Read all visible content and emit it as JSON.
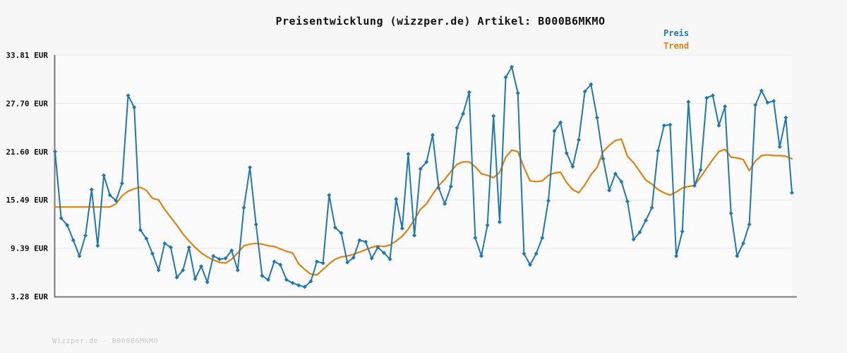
{
  "title": "Preisentwicklung (wizzper.de) Artikel: B000B6MKMO",
  "footer": "Wizzper.de - B000B6MKMO",
  "legend": [
    {
      "label": "Preis",
      "color": "#1f77b4"
    },
    {
      "label": "Trend",
      "color": "#e0820f"
    }
  ],
  "colors": {
    "page_bg": "#f7f7f7",
    "plot_bg": "#fbfbfb",
    "grid": "#e7e7e7",
    "axis": "#7a7a7a",
    "tick_text": "#111111",
    "title_text": "#111111",
    "footer_text": "#c8c8c8",
    "price": "#1f77b4",
    "trend": "#e0820f"
  },
  "chart_data": {
    "type": "line",
    "title": "Preisentwicklung (wizzper.de) Artikel: B000B6MKMO",
    "xlabel": "",
    "ylabel": "EUR",
    "ylim": [
      3.28,
      33.81
    ],
    "grid": "horizontal",
    "legend_position": "top-right",
    "x_tick_labels": [],
    "y_ticks": [
      {
        "label": "33.81 EUR",
        "value": 33.81
      },
      {
        "label": "27.70 EUR",
        "value": 27.7
      },
      {
        "label": "21.60 EUR",
        "value": 21.6
      },
      {
        "label": "15.49 EUR",
        "value": 15.49
      },
      {
        "label": "9.39 EUR",
        "value": 9.39
      },
      {
        "label": "3.28 EUR",
        "value": 3.28
      }
    ],
    "series": [
      {
        "name": "Preis",
        "color": "#1f77b4",
        "marker": "diamond",
        "line_width": 2,
        "values": [
          21.6,
          13.2,
          12.3,
          10.4,
          8.4,
          11.0,
          16.8,
          9.7,
          18.6,
          16.1,
          15.4,
          17.6,
          28.7,
          27.2,
          11.7,
          10.6,
          8.7,
          6.6,
          10.0,
          9.5,
          5.7,
          6.6,
          9.5,
          5.5,
          7.1,
          5.1,
          8.4,
          8.0,
          8.1,
          9.1,
          6.6,
          14.5,
          19.6,
          12.4,
          5.9,
          5.4,
          7.7,
          7.3,
          5.4,
          5.0,
          4.7,
          4.5,
          5.2,
          7.7,
          7.5,
          16.1,
          12.0,
          11.3,
          7.6,
          8.2,
          10.4,
          10.2,
          8.1,
          9.5,
          8.8,
          8.0,
          15.6,
          11.9,
          21.3,
          11.0,
          19.4,
          20.3,
          23.7,
          17.0,
          15.0,
          17.2,
          24.6,
          26.4,
          29.1,
          10.7,
          8.4,
          12.3,
          26.1,
          12.7,
          31.0,
          32.3,
          29.0,
          8.7,
          7.3,
          8.7,
          10.7,
          15.4,
          24.2,
          25.3,
          21.4,
          19.7,
          23.1,
          29.2,
          30.1,
          25.9,
          20.7,
          16.7,
          18.8,
          17.8,
          15.3,
          10.5,
          11.4,
          12.9,
          14.5,
          21.7,
          24.9,
          25.0,
          8.4,
          11.5,
          27.9,
          17.3,
          19.3,
          28.4,
          28.7,
          24.9,
          27.3,
          13.8,
          8.4,
          10.0,
          12.4,
          27.5,
          29.3,
          27.8,
          28.0,
          22.2,
          25.9,
          16.4
        ]
      },
      {
        "name": "Trend",
        "color": "#e0820f",
        "marker": "none",
        "line_width": 2.2,
        "values": [
          14.6,
          14.6,
          14.6,
          14.6,
          14.6,
          14.6,
          14.6,
          14.6,
          14.6,
          14.6,
          15.0,
          16.0,
          16.6,
          16.9,
          17.1,
          16.7,
          15.7,
          15.5,
          14.3,
          13.3,
          12.3,
          11.2,
          10.3,
          9.5,
          8.8,
          8.3,
          7.9,
          7.6,
          7.5,
          8.0,
          8.8,
          9.7,
          9.9,
          10.0,
          9.9,
          9.7,
          9.6,
          9.3,
          9.0,
          8.8,
          7.4,
          6.7,
          6.1,
          6.0,
          6.7,
          7.4,
          8.0,
          8.3,
          8.4,
          8.6,
          8.9,
          9.2,
          9.5,
          9.7,
          9.6,
          9.8,
          10.3,
          10.9,
          11.8,
          13.0,
          14.3,
          15.0,
          16.2,
          17.3,
          18.1,
          19.1,
          20.0,
          20.3,
          20.3,
          19.7,
          18.8,
          18.6,
          18.3,
          19.0,
          20.9,
          21.8,
          21.6,
          19.6,
          17.9,
          17.8,
          17.9,
          18.6,
          18.9,
          19.0,
          17.7,
          16.8,
          16.4,
          17.4,
          18.7,
          19.6,
          21.6,
          22.4,
          23.0,
          23.2,
          21.0,
          20.2,
          19.1,
          18.0,
          17.5,
          16.8,
          16.4,
          16.1,
          16.5,
          17.0,
          17.2,
          17.3,
          18.4,
          19.5,
          20.6,
          21.6,
          21.9,
          20.9,
          20.8,
          20.6,
          19.2,
          20.4,
          21.1,
          21.2,
          21.1,
          21.1,
          21.0,
          20.7
        ]
      }
    ]
  }
}
